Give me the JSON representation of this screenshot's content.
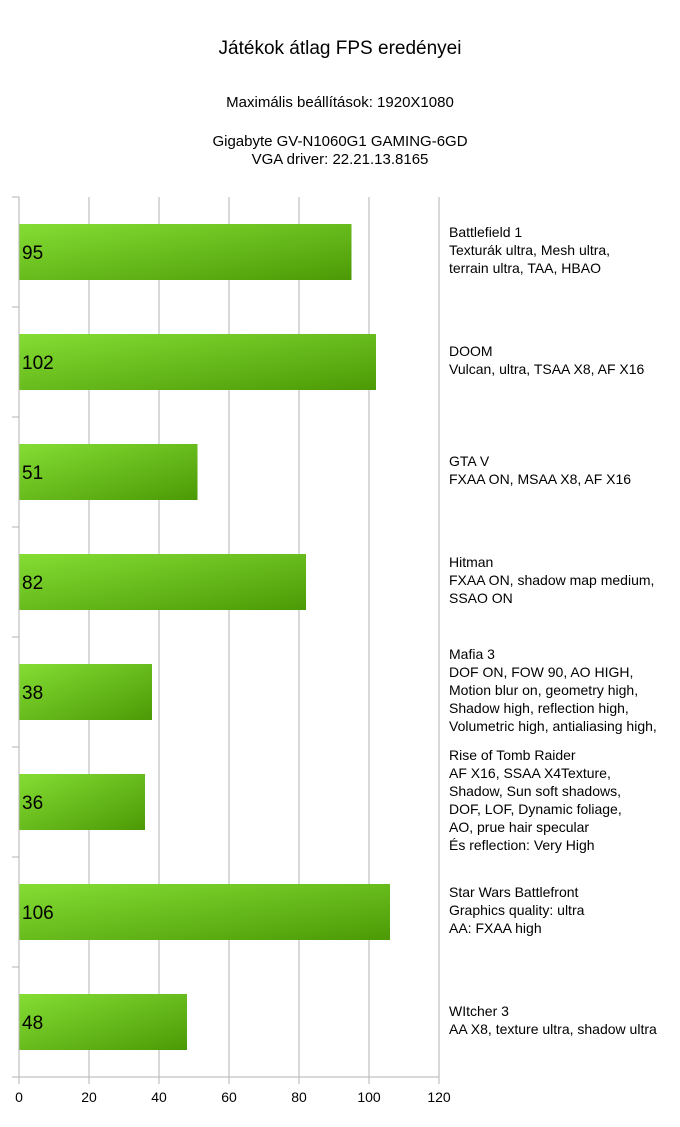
{
  "title": "Játékok átlag FPS eredényei",
  "subtitles": [
    "Maximális beállítások: 1920X1080",
    "Gigabyte GV-N1060G1 GAMING-6GD",
    "VGA driver: 22.21.13.8165"
  ],
  "colors": {
    "bar_light": "#84dd33",
    "bar_dark": "#4c9a06",
    "grid": "#b3b3b3",
    "axis": "#b3b3b3"
  },
  "chart_data": {
    "type": "bar",
    "orientation": "horizontal",
    "xlim": [
      0,
      120
    ],
    "xticks": [
      0,
      20,
      40,
      60,
      80,
      100,
      120
    ],
    "grid": true,
    "categories": [
      "Battlefield 1",
      "DOOM",
      "GTA V",
      "Hitman",
      "Mafia 3",
      "Rise of Tomb Raider",
      "Star Wars Battlefront",
      "WItcher 3"
    ],
    "values": [
      95,
      102,
      51,
      82,
      38,
      36,
      106,
      48
    ],
    "category_labels": [
      [
        "Battlefield 1",
        "Texturák ultra, Mesh ultra,",
        "terrain ultra, TAA, HBAO"
      ],
      [
        "DOOM",
        "Vulcan, ultra, TSAA X8, AF X16"
      ],
      [
        "GTA V",
        "FXAA ON, MSAA X8, AF X16"
      ],
      [
        "Hitman",
        "FXAA ON, shadow map medium,",
        "SSAO ON"
      ],
      [
        "Mafia 3",
        "DOF ON, FOW 90, AO HIGH,",
        "Motion blur on, geometry high,",
        "Shadow high, reflection high,",
        "Volumetric high, antialiasing high,"
      ],
      [
        "Rise of Tomb Raider",
        "AF X16, SSAA X4Texture,",
        "Shadow, Sun soft shadows,",
        "DOF, LOF, Dynamic foliage,",
        "AO, prue hair specular",
        "És reflection: Very High"
      ],
      [
        "Star Wars Battlefront",
        "Graphics quality: ultra",
        "AA: FXAA high"
      ],
      [
        "WItcher 3",
        "AA X8, texture ultra, shadow ultra"
      ]
    ],
    "data_labels": [
      "95",
      "102",
      "51",
      "82",
      "38",
      "36",
      "106",
      "48"
    ]
  }
}
